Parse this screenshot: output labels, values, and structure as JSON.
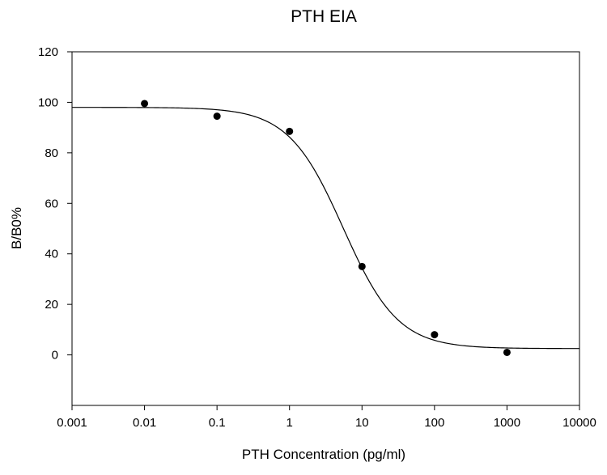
{
  "chart_data": {
    "type": "scatter",
    "title": "PTH EIA",
    "xlabel": "PTH Concentration (pg/ml)",
    "ylabel": "B/B0%",
    "x_scale": "log",
    "xlim": [
      0.001,
      10000
    ],
    "ylim": [
      -20,
      120
    ],
    "x_ticks": [
      "0.001",
      "0.01",
      "0.1",
      "1",
      "10",
      "100",
      "1000",
      "10000"
    ],
    "x_tick_values": [
      0.001,
      0.01,
      0.1,
      1,
      10,
      100,
      1000,
      10000
    ],
    "y_ticks": [
      "0",
      "20",
      "40",
      "60",
      "80",
      "100",
      "120"
    ],
    "y_tick_values": [
      0,
      20,
      40,
      60,
      80,
      100,
      120
    ],
    "grid": false,
    "points": [
      {
        "x": 0.01,
        "y": 99.5
      },
      {
        "x": 0.1,
        "y": 94.5
      },
      {
        "x": 1,
        "y": 88.5
      },
      {
        "x": 10,
        "y": 35
      },
      {
        "x": 100,
        "y": 8
      },
      {
        "x": 1000,
        "y": 1
      }
    ],
    "fit_curve": {
      "model": "4PL",
      "top": 98,
      "bottom": 2.5,
      "ec50": 5.5,
      "hill": 1.15
    },
    "colors": {
      "points": "#000000",
      "curve": "#000000",
      "axes": "#000000"
    }
  }
}
